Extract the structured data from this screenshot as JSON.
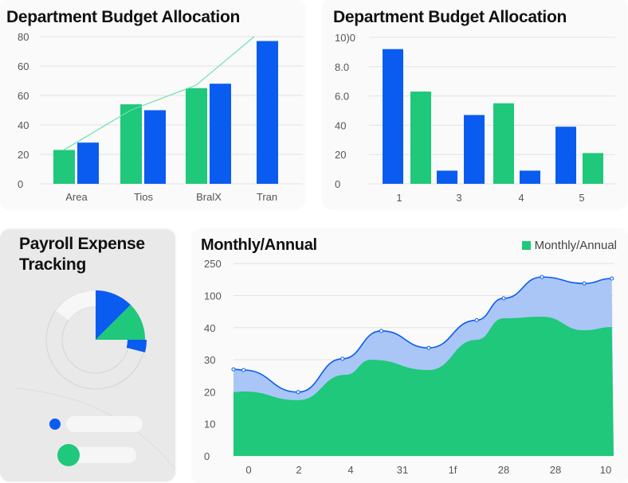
{
  "colors": {
    "blue": "#0a5cf0",
    "green": "#1fc87a",
    "blue_fill": "#a9c6f7",
    "grid": "#e2e2e2"
  },
  "chart_data": [
    {
      "type": "bar",
      "title": "Department Budget Allocation",
      "categories": [
        "Area",
        "Tios",
        "BralX",
        "Tran"
      ],
      "y_tick_labels": [
        "0",
        "20",
        "40",
        "60",
        "60",
        "80"
      ],
      "ylim": [
        0,
        100
      ],
      "grid": true,
      "series": [
        {
          "color": "green",
          "values": [
            23,
            54,
            65,
            null
          ]
        },
        {
          "color": "blue",
          "values": [
            28,
            50,
            68,
            97
          ]
        }
      ],
      "trend_line": {
        "color": "green",
        "values": [
          23,
          50,
          67,
          100
        ]
      }
    },
    {
      "type": "bar",
      "title": "Department Budget Allocation",
      "x_tick_labels": [
        "1",
        "3",
        "4",
        "5"
      ],
      "y_tick_labels": [
        "0",
        "20",
        "40",
        "6.0",
        "8.0",
        "10)0"
      ],
      "ylim": [
        0,
        100
      ],
      "grid": true,
      "bars": [
        {
          "color": "blue",
          "value": 92
        },
        {
          "color": "green",
          "value": 63
        },
        {
          "color": "blue",
          "value": 9
        },
        {
          "color": "blue",
          "value": 47
        },
        {
          "color": "green",
          "value": 55
        },
        {
          "color": "blue",
          "value": 9
        },
        {
          "color": "blue",
          "value": 39
        },
        {
          "color": "green",
          "value": 21
        }
      ]
    },
    {
      "type": "pie",
      "title": "Payroll Expense Tracking",
      "slices": [
        {
          "color": "blue",
          "fraction": 0.125
        },
        {
          "color": "green",
          "fraction": 0.125
        },
        {
          "color": "blue",
          "fraction": 0.04,
          "inner": true
        }
      ],
      "legend_rows": [
        {
          "color": "blue"
        },
        {
          "color": "green"
        }
      ]
    },
    {
      "type": "area",
      "title": "Monthly/Annual",
      "legend": {
        "label": "Monthly/Annual",
        "color": "green",
        "placement": "top-right"
      },
      "x_tick_labels": [
        "0",
        "2",
        "4",
        "31",
        "1f",
        "28",
        "28",
        "10"
      ],
      "y_tick_labels": [
        "0",
        "10",
        "20",
        "30",
        "40",
        "100",
        "250"
      ],
      "grid": true,
      "series": [
        {
          "color": "blue",
          "x": [
            -0.3,
            -0.1,
            0.97,
            1.84,
            2.6,
            3.53,
            4.47,
            5.0,
            5.75,
            6.58,
            7.12
          ],
          "y": [
            27,
            26.8,
            19.9,
            30.3,
            39,
            33.7,
            54,
            95,
            187,
            157,
            180
          ]
        },
        {
          "color": "green",
          "x": [
            -0.3,
            -0.1,
            0.97,
            1.9,
            2.4,
            3.53,
            4.47,
            5.0,
            5.75,
            6.58,
            7.12
          ],
          "y": [
            19.9,
            20.1,
            17.4,
            25.3,
            30,
            26.8,
            36.2,
            57.5,
            60.6,
            39.2,
            41
          ]
        }
      ]
    }
  ]
}
